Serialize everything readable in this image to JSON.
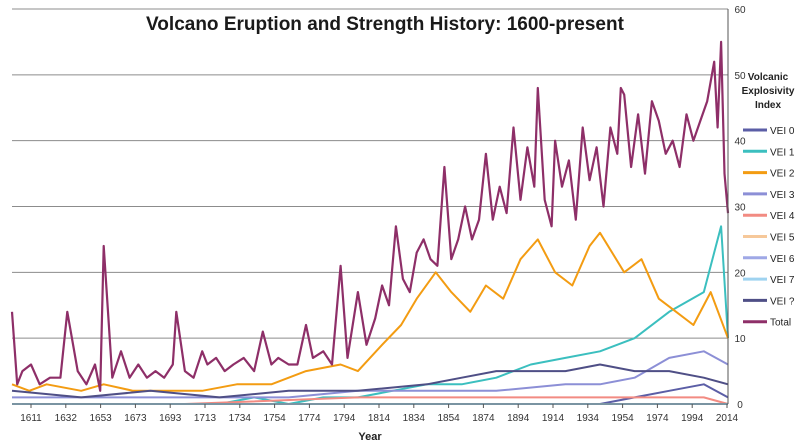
{
  "chart_data": {
    "type": "line",
    "title": "Volcano Eruption and Strength History: 1600-present",
    "xlabel": "Year",
    "ylabel": "",
    "legend_title": [
      "Volcanic",
      "Explosivity",
      "Index"
    ],
    "legend_position": "right",
    "xlim": [
      1600,
      2014
    ],
    "ylim": [
      0,
      60
    ],
    "y_ticks": [
      0,
      10,
      20,
      30,
      40,
      50,
      60
    ],
    "y_axis_side": "right",
    "grid": "horizontal",
    "x_tick_labels": [
      "1611",
      "1632",
      "1653",
      "1673",
      "1693",
      "1713",
      "1734",
      "1754",
      "1774",
      "1794",
      "1814",
      "1834",
      "1854",
      "1874",
      "1894",
      "1914",
      "1934",
      "1954",
      "1974",
      "1994",
      "2014"
    ],
    "series": [
      {
        "name": "VEI 0",
        "color": "#5b5ea6",
        "x": [
          1600,
          1620,
          1640,
          1660,
          1680,
          1700,
          1720,
          1740,
          1760,
          1780,
          1800,
          1820,
          1840,
          1860,
          1880,
          1900,
          1920,
          1940,
          1960,
          1980,
          2000,
          2014
        ],
        "values": [
          0,
          0,
          0,
          0,
          0,
          0,
          0,
          0,
          0,
          0,
          0,
          0,
          0,
          0,
          0,
          0,
          0,
          0,
          1,
          2,
          3,
          1
        ]
      },
      {
        "name": "VEI 1",
        "color": "#3bbfbf",
        "x": [
          1600,
          1620,
          1640,
          1660,
          1680,
          1700,
          1720,
          1740,
          1760,
          1780,
          1800,
          1820,
          1840,
          1860,
          1880,
          1900,
          1920,
          1940,
          1960,
          1980,
          2000,
          2010,
          2014
        ],
        "values": [
          0,
          0,
          0,
          0,
          0,
          0,
          0,
          1,
          0,
          1,
          1,
          2,
          3,
          3,
          4,
          6,
          7,
          8,
          10,
          14,
          17,
          27,
          10
        ]
      },
      {
        "name": "VEI 2",
        "color": "#f39c12",
        "x": [
          1600,
          1610,
          1620,
          1640,
          1653,
          1670,
          1690,
          1710,
          1730,
          1750,
          1770,
          1790,
          1800,
          1814,
          1825,
          1834,
          1845,
          1854,
          1865,
          1874,
          1884,
          1894,
          1904,
          1914,
          1924,
          1934,
          1940,
          1954,
          1964,
          1974,
          1984,
          1994,
          2004,
          2014
        ],
        "values": [
          3,
          2,
          3,
          2,
          3,
          2,
          2,
          2,
          3,
          3,
          5,
          6,
          5,
          9,
          12,
          16,
          20,
          17,
          14,
          18,
          16,
          22,
          25,
          20,
          18,
          24,
          26,
          20,
          22,
          16,
          14,
          12,
          17,
          10
        ]
      },
      {
        "name": "VEI 3",
        "color": "#8c8fd6",
        "x": [
          1600,
          1640,
          1680,
          1720,
          1760,
          1800,
          1840,
          1880,
          1920,
          1940,
          1960,
          1980,
          2000,
          2014
        ],
        "values": [
          1,
          1,
          1,
          1,
          1,
          2,
          2,
          2,
          3,
          3,
          4,
          7,
          8,
          6
        ]
      },
      {
        "name": "VEI 4",
        "color": "#f28b82",
        "x": [
          1600,
          1700,
          1800,
          1900,
          2000,
          2014
        ],
        "values": [
          0,
          0,
          1,
          1,
          1,
          0
        ]
      },
      {
        "name": "VEI 5",
        "color": "#f6c89a",
        "x": [
          1600,
          1800,
          2014
        ],
        "values": [
          0,
          0,
          0
        ]
      },
      {
        "name": "VEI 6",
        "color": "#9fa8e6",
        "x": [
          1600,
          1800,
          2014
        ],
        "values": [
          0,
          0,
          0
        ]
      },
      {
        "name": "VEI 7",
        "color": "#9fd3f0",
        "x": [
          1600,
          1800,
          2014
        ],
        "values": [
          0,
          0,
          0
        ]
      },
      {
        "name": "VEI ?",
        "color": "#4f4f86",
        "x": [
          1600,
          1640,
          1680,
          1720,
          1760,
          1800,
          1840,
          1860,
          1880,
          1900,
          1920,
          1940,
          1960,
          1980,
          2000,
          2014
        ],
        "values": [
          2,
          1,
          2,
          1,
          2,
          2,
          3,
          4,
          5,
          5,
          5,
          6,
          5,
          5,
          4,
          3
        ]
      },
      {
        "name": "Total",
        "color": "#8e2f68",
        "x": [
          1600,
          1603,
          1606,
          1611,
          1616,
          1622,
          1628,
          1632,
          1638,
          1643,
          1648,
          1651,
          1653,
          1658,
          1663,
          1668,
          1673,
          1678,
          1683,
          1688,
          1693,
          1695,
          1700,
          1705,
          1710,
          1713,
          1718,
          1723,
          1728,
          1734,
          1740,
          1745,
          1750,
          1754,
          1760,
          1765,
          1770,
          1774,
          1780,
          1785,
          1790,
          1794,
          1800,
          1805,
          1810,
          1814,
          1818,
          1822,
          1826,
          1830,
          1834,
          1838,
          1842,
          1846,
          1850,
          1854,
          1858,
          1862,
          1866,
          1870,
          1874,
          1878,
          1882,
          1886,
          1890,
          1894,
          1898,
          1902,
          1904,
          1908,
          1912,
          1914,
          1918,
          1922,
          1926,
          1930,
          1934,
          1938,
          1942,
          1946,
          1950,
          1952,
          1954,
          1958,
          1962,
          1966,
          1970,
          1974,
          1978,
          1982,
          1986,
          1990,
          1994,
          1998,
          2002,
          2006,
          2008,
          2010,
          2012,
          2014
        ],
        "values": [
          14,
          3,
          5,
          6,
          3,
          4,
          4,
          14,
          5,
          3,
          6,
          2,
          24,
          4,
          8,
          4,
          6,
          4,
          5,
          4,
          6,
          14,
          5,
          4,
          8,
          6,
          7,
          5,
          6,
          7,
          5,
          11,
          6,
          7,
          6,
          6,
          12,
          7,
          8,
          6,
          21,
          7,
          17,
          9,
          13,
          18,
          15,
          27,
          19,
          17,
          23,
          25,
          22,
          21,
          36,
          22,
          25,
          30,
          25,
          28,
          38,
          28,
          33,
          29,
          42,
          31,
          39,
          33,
          48,
          31,
          27,
          40,
          33,
          37,
          28,
          42,
          34,
          39,
          30,
          42,
          38,
          48,
          47,
          36,
          44,
          35,
          46,
          43,
          38,
          40,
          36,
          44,
          40,
          43,
          46,
          52,
          42,
          55,
          35,
          29
        ]
      }
    ]
  }
}
